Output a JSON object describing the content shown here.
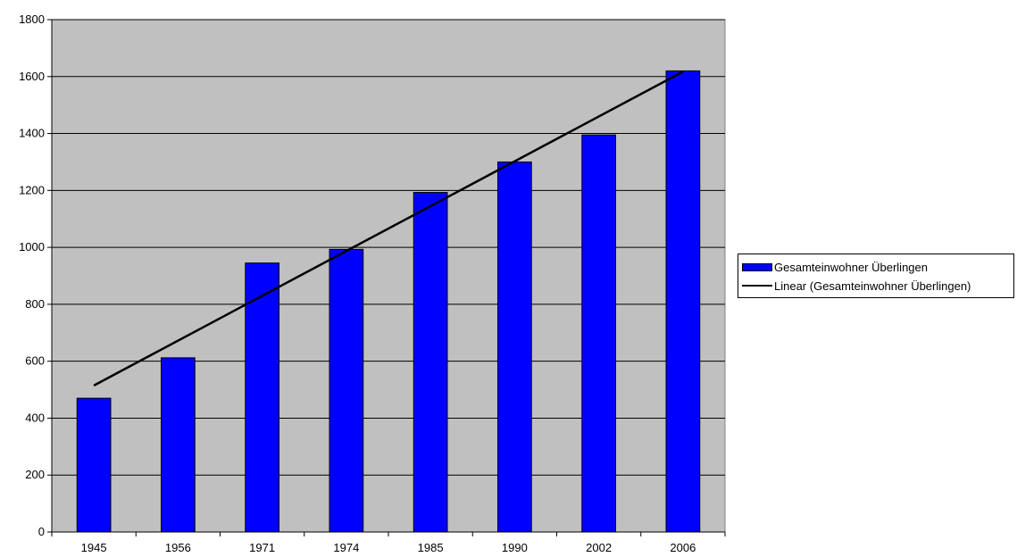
{
  "chart_data": {
    "type": "bar",
    "categories": [
      "1945",
      "1956",
      "1971",
      "1974",
      "1985",
      "1990",
      "2002",
      "2006"
    ],
    "series": [
      {
        "name": "Gesamteinwohner Überlingen",
        "values": [
          470,
          612,
          945,
          993,
          1193,
          1300,
          1395,
          1620
        ],
        "color": "#0000ff"
      }
    ],
    "trendline": {
      "name": "Linear (Gesamteinwohner Überlingen)",
      "type": "linear",
      "color": "#000000"
    },
    "ylim": [
      0,
      1800
    ],
    "yticks": [
      0,
      200,
      400,
      600,
      800,
      1000,
      1200,
      1400,
      1600,
      1800
    ],
    "grid": true,
    "plot_background": "#c0c0c0",
    "legend_position": "right"
  }
}
